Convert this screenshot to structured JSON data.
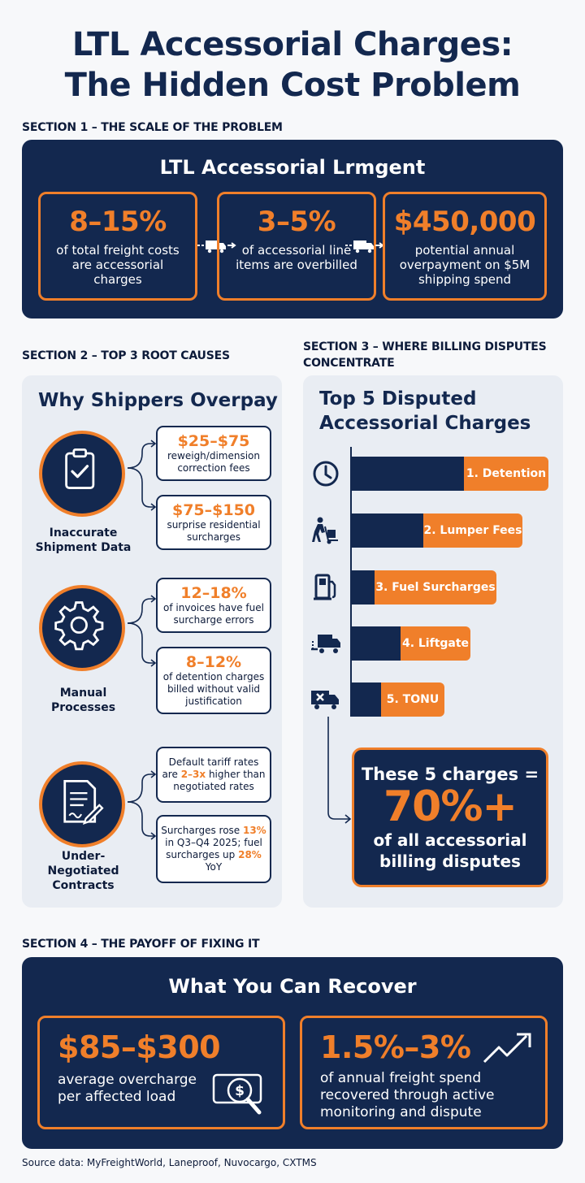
{
  "title": {
    "line1": "LTL Accessorial Charges:",
    "line2": "The Hidden Cost Problem"
  },
  "section1": {
    "heading": "SECTION 1 – THE SCALE OF THE PROBLEM",
    "panel_title": "LTL Accessorial Lrmgent",
    "stats": [
      {
        "value": "8–15%",
        "desc": "of total freight costs are accessorial charges"
      },
      {
        "value": "3–5%",
        "desc": "of accessorial line items are overbilled"
      },
      {
        "value": "$450,000",
        "desc": "potential annual overpayment on $5M shipping spend"
      }
    ]
  },
  "section2": {
    "heading": "SECTION 2 – TOP 3 ROOT CAUSES",
    "panel_title": "Why Shippers Overpay",
    "causes": [
      {
        "label": "Inaccurate Shipment Data",
        "icon": "clipboard-check-icon"
      },
      {
        "label": "Manual Processes",
        "icon": "gear-icon"
      },
      {
        "label": "Under-Negotiated Contracts",
        "icon": "contract-signature-icon"
      }
    ],
    "facts": [
      {
        "value": "$25–$75",
        "desc": "reweigh/dimension correction fees"
      },
      {
        "value": "$75–$150",
        "desc": "surprise residential surcharges"
      },
      {
        "value": "12–18%",
        "desc": "of invoices have fuel surcharge errors"
      },
      {
        "value": "8–12%",
        "desc": "of detention charges billed without valid justification"
      }
    ],
    "fact5": {
      "pre": "Default tariff rates are ",
      "hl": "2–3x",
      "post": " higher than negotiated rates"
    },
    "fact6": {
      "pre": "Surcharges rose ",
      "hl1": "13%",
      "mid": " in Q3–Q4 2025; fuel surcharges up ",
      "hl2": "28%",
      "post": " YoY"
    }
  },
  "section3": {
    "heading_line1": "SECTION 3 – WHERE BILLING DISPUTES",
    "heading_line2": "CONCENTRATE",
    "panel_title_line1": "Top 5 Disputed",
    "panel_title_line2": "Accessorial Charges",
    "callout_line1": "These 5 charges =",
    "callout_value": "70%+",
    "callout_line2": "of all accessorial",
    "callout_line3": "billing disputes"
  },
  "chart_data": {
    "type": "bar",
    "categories": [
      "1. Detention",
      "2. Lumper Fees",
      "3. Fuel Surcharges",
      "4. Liftgate",
      "5. TONU"
    ],
    "values": [
      5,
      4,
      3,
      2,
      1
    ],
    "icons": [
      "clock-icon",
      "hand-truck-icon",
      "fuel-pump-icon",
      "liftgate-truck-icon",
      "cancelled-truck-icon"
    ]
  },
  "section4": {
    "heading": "SECTION 4 – THE PAYOFF OF FIXING IT",
    "panel_title": "What You Can Recover",
    "stats": [
      {
        "value": "$85–$300",
        "desc_line1": "average overcharge",
        "desc_line2": "per affected load"
      },
      {
        "value": "1.5%–3%",
        "desc_line1": "of annual freight spend",
        "desc_line2": "recovered through active",
        "desc_line3": "monitoring and dispute"
      }
    ]
  },
  "source": "Source data: MyFreightWorld, Laneproof, Nuvocargo, CXTMS",
  "colors": {
    "navy": "#13284f",
    "orange": "#f07f2a",
    "panel_gray": "#e9edf3"
  }
}
